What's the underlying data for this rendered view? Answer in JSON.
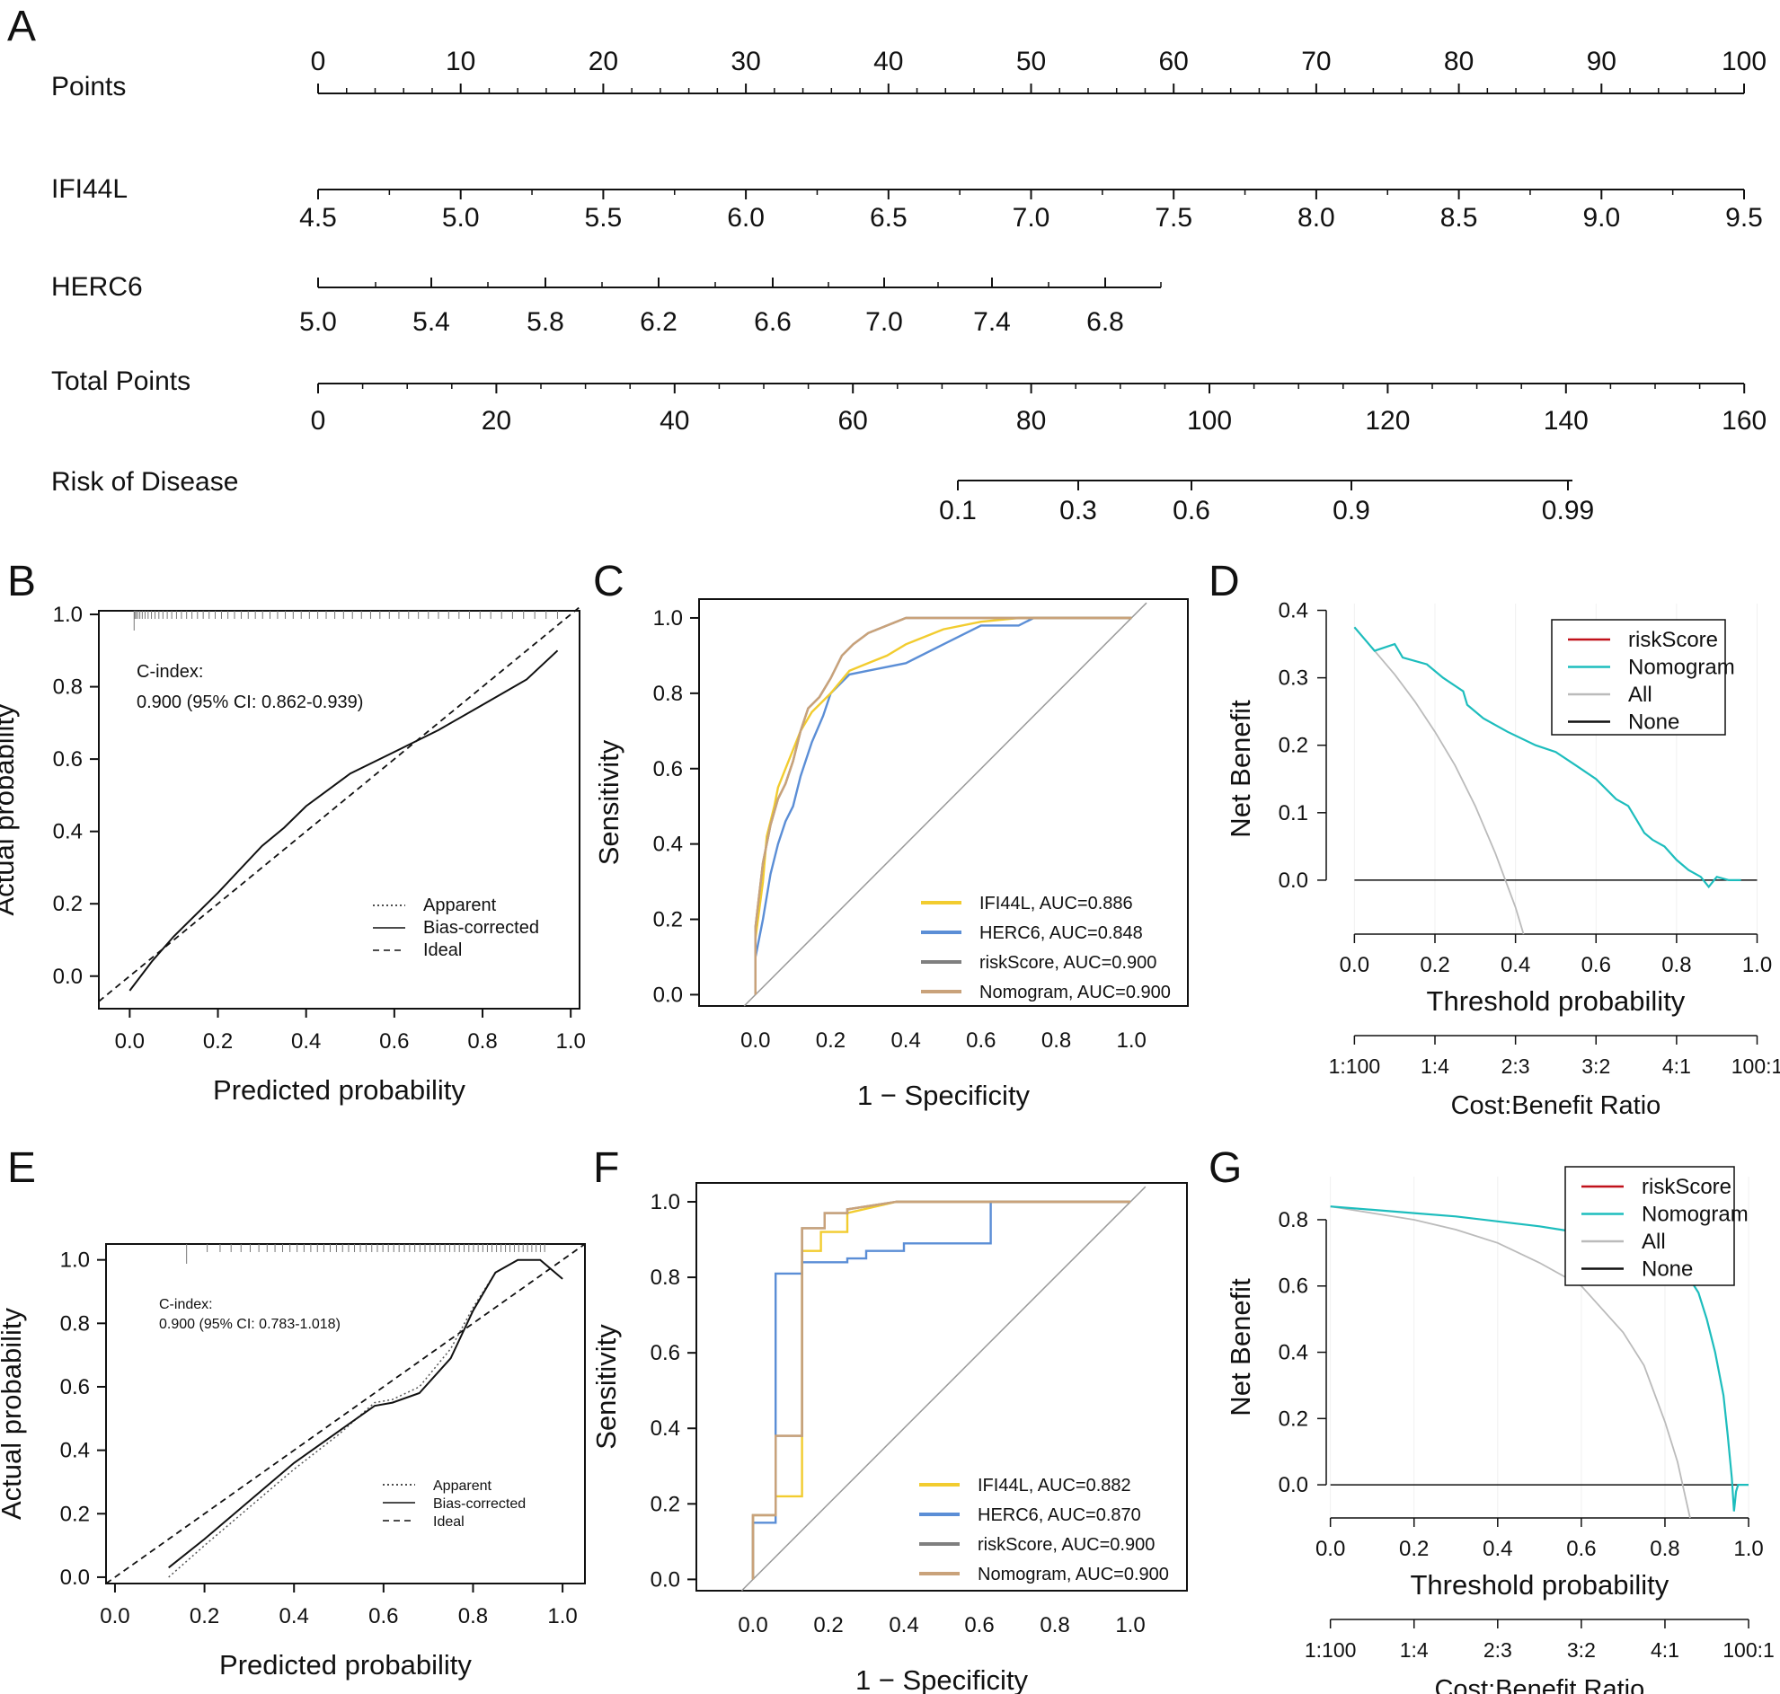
{
  "chart_data": [
    {
      "panel": "A",
      "type": "nomogram",
      "rows": [
        {
          "label": "Points",
          "ticks": [
            "0",
            "10",
            "20",
            "30",
            "40",
            "50",
            "60",
            "70",
            "80",
            "90",
            "100"
          ]
        },
        {
          "label": "IFI44L",
          "ticks": [
            "4.5",
            "5.0",
            "5.5",
            "6.0",
            "6.5",
            "7.0",
            "7.5",
            "8.0",
            "8.5",
            "9.0",
            "9.5"
          ]
        },
        {
          "label": "HERC6",
          "ticks": [
            "5.0",
            "5.4",
            "5.8",
            "6.2",
            "6.6",
            "7.0",
            "7.4",
            "6.8"
          ]
        },
        {
          "label": "Total Points",
          "ticks": [
            "0",
            "20",
            "40",
            "60",
            "80",
            "100",
            "120",
            "140",
            "160"
          ]
        },
        {
          "label": "Risk of Disease",
          "ticks": [
            "0.1",
            "0.3",
            "0.6",
            "0.9",
            "0.99"
          ]
        }
      ]
    },
    {
      "panel": "B",
      "type": "line",
      "xlabel": "Predicted probability",
      "ylabel": "Actual probability",
      "xlim": [
        -0.07,
        1.02
      ],
      "ylim": [
        -0.09,
        1.01
      ],
      "ticks": [
        "0.0",
        "0.2",
        "0.4",
        "0.6",
        "0.8",
        "1.0"
      ],
      "annotation": {
        "title": "C-index:",
        "value": "0.900 (95% CI: 0.862-0.939)"
      },
      "legend": [
        "Apparent",
        "Bias-corrected",
        "Ideal"
      ],
      "series": [
        {
          "name": "Apparent",
          "x": [
            0,
            0.05,
            0.1,
            0.2,
            0.3,
            0.35,
            0.4,
            0.5,
            0.6,
            0.7,
            0.8,
            0.9,
            0.97
          ],
          "y": [
            -0.04,
            0.04,
            0.11,
            0.23,
            0.36,
            0.41,
            0.47,
            0.56,
            0.62,
            0.68,
            0.75,
            0.82,
            0.9
          ]
        },
        {
          "name": "Bias-corrected",
          "x": [
            0,
            0.05,
            0.1,
            0.2,
            0.3,
            0.35,
            0.4,
            0.5,
            0.6,
            0.7,
            0.8,
            0.9,
            0.97
          ],
          "y": [
            -0.04,
            0.04,
            0.11,
            0.23,
            0.36,
            0.41,
            0.47,
            0.56,
            0.62,
            0.68,
            0.75,
            0.82,
            0.9
          ]
        },
        {
          "name": "Ideal",
          "x": [
            -0.07,
            1.02
          ],
          "y": [
            -0.07,
            1.02
          ]
        }
      ]
    },
    {
      "panel": "C",
      "type": "line",
      "xlabel": "1 − Specificity",
      "ylabel": "Sensitivity",
      "xlim": [
        -0.15,
        1.15
      ],
      "ylim": [
        -0.03,
        1.05
      ],
      "ticks": [
        "0.0",
        "0.2",
        "0.4",
        "0.6",
        "0.8",
        "1.0"
      ],
      "series": [
        {
          "name": "IFI44L, AUC=0.886",
          "color": "#F2CC2F",
          "x": [
            0,
            0,
            0.02,
            0.03,
            0.05,
            0.06,
            0.08,
            0.1,
            0.12,
            0.15,
            0.2,
            0.25,
            0.3,
            0.35,
            0.4,
            0.5,
            0.6,
            0.7,
            1
          ],
          "y": [
            0,
            0.15,
            0.3,
            0.42,
            0.5,
            0.55,
            0.6,
            0.65,
            0.7,
            0.75,
            0.8,
            0.86,
            0.88,
            0.9,
            0.93,
            0.97,
            0.99,
            1,
            1
          ]
        },
        {
          "name": "HERC6, AUC=0.848",
          "color": "#5B8ED6",
          "x": [
            0,
            0,
            0.02,
            0.04,
            0.06,
            0.08,
            0.1,
            0.12,
            0.15,
            0.18,
            0.2,
            0.25,
            0.3,
            0.4,
            0.5,
            0.6,
            0.7,
            0.74,
            1
          ],
          "y": [
            0,
            0.1,
            0.2,
            0.32,
            0.4,
            0.46,
            0.5,
            0.58,
            0.67,
            0.74,
            0.8,
            0.85,
            0.86,
            0.88,
            0.93,
            0.98,
            0.98,
            1,
            1
          ]
        },
        {
          "name": "riskScore, AUC=0.900",
          "color": "#7F7F7F",
          "x": [
            0,
            0,
            0.02,
            0.04,
            0.06,
            0.08,
            0.1,
            0.12,
            0.14,
            0.17,
            0.2,
            0.23,
            0.26,
            0.3,
            0.35,
            0.4,
            0.55,
            1
          ],
          "y": [
            0,
            0.18,
            0.35,
            0.45,
            0.52,
            0.56,
            0.62,
            0.7,
            0.76,
            0.79,
            0.84,
            0.9,
            0.93,
            0.96,
            0.98,
            1,
            1,
            1
          ]
        },
        {
          "name": "Nomogram, AUC=0.900",
          "color": "#C9A27A",
          "x": [
            0,
            0,
            0.02,
            0.04,
            0.06,
            0.08,
            0.1,
            0.12,
            0.14,
            0.17,
            0.2,
            0.23,
            0.26,
            0.3,
            0.35,
            0.4,
            0.55,
            1
          ],
          "y": [
            0,
            0.18,
            0.35,
            0.45,
            0.52,
            0.56,
            0.62,
            0.7,
            0.76,
            0.79,
            0.84,
            0.9,
            0.93,
            0.96,
            0.98,
            1,
            1,
            1
          ]
        },
        {
          "name": "diagonal",
          "color": "#999999",
          "x": [
            -0.03,
            1.04
          ],
          "y": [
            -0.03,
            1.04
          ]
        }
      ]
    },
    {
      "panel": "D",
      "type": "line",
      "xlabel": "Threshold probability",
      "ylabel": "Net Benefit",
      "x2label": "Cost:Benefit Ratio",
      "xlim": [
        -0.07,
        1.01
      ],
      "ylim": [
        -0.08,
        0.41
      ],
      "xticks": [
        "0.0",
        "0.2",
        "0.4",
        "0.6",
        "0.8",
        "1.0"
      ],
      "yticks": [
        "0.0",
        "0.1",
        "0.2",
        "0.3",
        "0.4"
      ],
      "ratio_ticks": [
        "1:100",
        "1:4",
        "2:3",
        "3:2",
        "4:1",
        "100:1"
      ],
      "legend": [
        {
          "name": "riskScore",
          "color": "#C0111A"
        },
        {
          "name": "Nomogram",
          "color": "#1DBDBD"
        },
        {
          "name": "All",
          "color": "#BBBBBB"
        },
        {
          "name": "None",
          "color": "#111111"
        }
      ],
      "series": [
        {
          "name": "Nomogram",
          "x": [
            0,
            0.05,
            0.1,
            0.12,
            0.18,
            0.22,
            0.27,
            0.28,
            0.32,
            0.38,
            0.45,
            0.5,
            0.55,
            0.6,
            0.65,
            0.68,
            0.7,
            0.72,
            0.74,
            0.77,
            0.8,
            0.83,
            0.86,
            0.88,
            0.9,
            0.93,
            0.96
          ],
          "y": [
            0.375,
            0.34,
            0.35,
            0.33,
            0.32,
            0.3,
            0.28,
            0.26,
            0.24,
            0.22,
            0.2,
            0.19,
            0.17,
            0.15,
            0.12,
            0.11,
            0.09,
            0.07,
            0.06,
            0.05,
            0.03,
            0.015,
            0.005,
            -0.01,
            0.005,
            0.0,
            0.0
          ]
        },
        {
          "name": "All",
          "x": [
            0,
            0.05,
            0.1,
            0.15,
            0.2,
            0.25,
            0.3,
            0.35,
            0.4,
            0.42
          ],
          "y": [
            0.375,
            0.34,
            0.305,
            0.265,
            0.22,
            0.17,
            0.11,
            0.04,
            -0.04,
            -0.08
          ]
        },
        {
          "name": "None",
          "x": [
            0,
            1.0
          ],
          "y": [
            0,
            0
          ]
        }
      ]
    },
    {
      "panel": "E",
      "type": "line",
      "xlabel": "Predicted probability",
      "ylabel": "Actual probability",
      "xlim": [
        -0.02,
        1.05
      ],
      "ylim": [
        -0.02,
        1.05
      ],
      "ticks": [
        "0.0",
        "0.2",
        "0.4",
        "0.6",
        "0.8",
        "1.0"
      ],
      "annotation": {
        "title": "C-index:",
        "value": "0.900 (95% CI: 0.783-1.018)"
      },
      "legend": [
        "Apparent",
        "Bias-corrected",
        "Ideal"
      ],
      "series": [
        {
          "name": "Apparent",
          "x": [
            0.12,
            0.2,
            0.3,
            0.4,
            0.5,
            0.58,
            0.62,
            0.68,
            0.75,
            0.8,
            0.85,
            0.9,
            0.95,
            1.0
          ],
          "y": [
            0.0,
            0.1,
            0.22,
            0.34,
            0.45,
            0.55,
            0.56,
            0.6,
            0.72,
            0.85,
            0.96,
            1.0,
            1.0,
            0.94
          ]
        },
        {
          "name": "Bias-corrected",
          "x": [
            0.12,
            0.2,
            0.3,
            0.4,
            0.5,
            0.58,
            0.62,
            0.68,
            0.75,
            0.8,
            0.85,
            0.9,
            0.95,
            1.0
          ],
          "y": [
            0.03,
            0.12,
            0.24,
            0.36,
            0.46,
            0.54,
            0.55,
            0.58,
            0.69,
            0.84,
            0.96,
            1.0,
            1.0,
            0.94
          ]
        },
        {
          "name": "Ideal",
          "x": [
            -0.02,
            1.05
          ],
          "y": [
            -0.02,
            1.05
          ]
        }
      ]
    },
    {
      "panel": "F",
      "type": "line",
      "xlabel": "1 − Specificity",
      "ylabel": "Sensitivity",
      "xlim": [
        -0.15,
        1.15
      ],
      "ylim": [
        -0.03,
        1.05
      ],
      "ticks": [
        "0.0",
        "0.2",
        "0.4",
        "0.6",
        "0.8",
        "1.0"
      ],
      "series": [
        {
          "name": "IFI44L, AUC=0.882",
          "color": "#F2CC2F",
          "x": [
            0,
            0,
            0.06,
            0.06,
            0.13,
            0.13,
            0.18,
            0.18,
            0.25,
            0.25,
            0.38,
            1
          ],
          "y": [
            0,
            0.17,
            0.17,
            0.22,
            0.22,
            0.87,
            0.87,
            0.92,
            0.92,
            0.97,
            1,
            1
          ]
        },
        {
          "name": "HERC6, AUC=0.870",
          "color": "#5B8ED6",
          "x": [
            0,
            0,
            0.06,
            0.06,
            0.13,
            0.13,
            0.25,
            0.25,
            0.3,
            0.3,
            0.4,
            0.4,
            0.63,
            0.63,
            1
          ],
          "y": [
            0,
            0.15,
            0.15,
            0.81,
            0.81,
            0.84,
            0.84,
            0.85,
            0.85,
            0.87,
            0.87,
            0.89,
            0.89,
            1,
            1
          ]
        },
        {
          "name": "riskScore, AUC=0.900",
          "color": "#7F7F7F",
          "x": [
            0,
            0,
            0.06,
            0.06,
            0.13,
            0.13,
            0.19,
            0.19,
            0.25,
            0.25,
            0.38,
            1
          ],
          "y": [
            0,
            0.17,
            0.17,
            0.38,
            0.38,
            0.93,
            0.93,
            0.97,
            0.97,
            0.98,
            1,
            1
          ]
        },
        {
          "name": "Nomogram, AUC=0.900",
          "color": "#C9A27A",
          "x": [
            0,
            0,
            0.06,
            0.06,
            0.13,
            0.13,
            0.19,
            0.19,
            0.25,
            0.25,
            0.38,
            1
          ],
          "y": [
            0,
            0.17,
            0.17,
            0.38,
            0.38,
            0.93,
            0.93,
            0.97,
            0.97,
            0.98,
            1,
            1
          ]
        },
        {
          "name": "diagonal",
          "color": "#999999",
          "x": [
            -0.03,
            1.04
          ],
          "y": [
            -0.03,
            1.04
          ]
        }
      ]
    },
    {
      "panel": "G",
      "type": "line",
      "xlabel": "Threshold probability",
      "ylabel": "Net Benefit",
      "x2label": "Cost:Benefit Ratio",
      "xlim": [
        -0.01,
        1.03
      ],
      "ylim": [
        -0.1,
        0.93
      ],
      "xticks": [
        "0.0",
        "0.2",
        "0.4",
        "0.6",
        "0.8",
        "1.0"
      ],
      "yticks": [
        "0.0",
        "0.2",
        "0.4",
        "0.6",
        "0.8"
      ],
      "ratio_ticks": [
        "1:100",
        "1:4",
        "2:3",
        "3:2",
        "4:1",
        "100:1"
      ],
      "legend": [
        {
          "name": "riskScore",
          "color": "#C0111A"
        },
        {
          "name": "Nomogram",
          "color": "#1DBDBD"
        },
        {
          "name": "All",
          "color": "#BBBBBB"
        },
        {
          "name": "None",
          "color": "#111111"
        }
      ],
      "series": [
        {
          "name": "Nomogram",
          "x": [
            0,
            0.1,
            0.2,
            0.3,
            0.4,
            0.5,
            0.55,
            0.6,
            0.65,
            0.7,
            0.75,
            0.8,
            0.85,
            0.88,
            0.9,
            0.92,
            0.94,
            0.95,
            0.96,
            0.965,
            0.97,
            0.975,
            0.98,
            1.0
          ],
          "y": [
            0.84,
            0.83,
            0.82,
            0.81,
            0.795,
            0.78,
            0.77,
            0.76,
            0.75,
            0.74,
            0.72,
            0.69,
            0.64,
            0.58,
            0.5,
            0.4,
            0.27,
            0.15,
            0.02,
            -0.08,
            -0.02,
            0.0,
            0.0,
            0.0
          ]
        },
        {
          "name": "All",
          "x": [
            0,
            0.1,
            0.2,
            0.3,
            0.4,
            0.5,
            0.6,
            0.7,
            0.75,
            0.8,
            0.83,
            0.86
          ],
          "y": [
            0.84,
            0.82,
            0.8,
            0.77,
            0.73,
            0.67,
            0.6,
            0.46,
            0.36,
            0.19,
            0.07,
            -0.1
          ]
        },
        {
          "name": "None",
          "x": [
            0,
            1.0
          ],
          "y": [
            0,
            0
          ]
        }
      ]
    }
  ],
  "panel_letters": [
    "A",
    "B",
    "C",
    "D",
    "E",
    "F",
    "G"
  ]
}
